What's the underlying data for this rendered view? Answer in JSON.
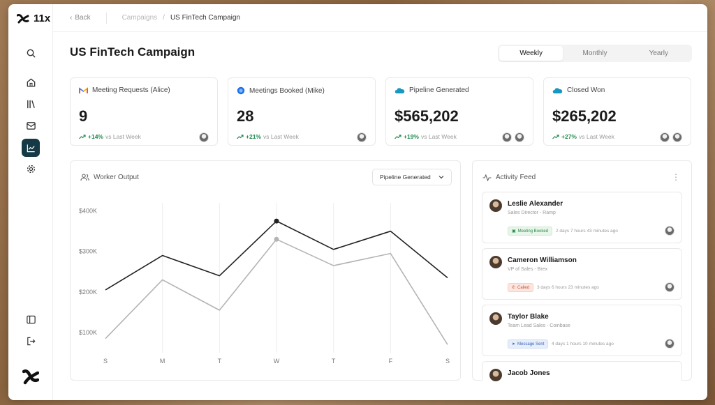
{
  "brand": {
    "name": "11x"
  },
  "topbar": {
    "back_label": "Back",
    "breadcrumb_parent": "Campaigns",
    "breadcrumb_sep": "/",
    "breadcrumb_current": "US FinTech Campaign"
  },
  "page": {
    "title": "US FinTech Campaign"
  },
  "period_toggle": {
    "options": [
      "Weekly",
      "Monthly",
      "Yearly"
    ],
    "selected": "Weekly"
  },
  "stats": [
    {
      "label": "Meeting Requests (Alice)",
      "icon": "gmail-icon",
      "value": "9",
      "trend": "+14%",
      "trend_suffix": "vs Last Week"
    },
    {
      "label": "Meetings Booked (Mike)",
      "icon": "calendar-dot-icon",
      "value": "28",
      "trend": "+21%",
      "trend_suffix": "vs Last Week"
    },
    {
      "label": "Pipeline Generated",
      "icon": "salesforce-icon",
      "value": "$565,202",
      "trend": "+19%",
      "trend_suffix": "vs Last Week"
    },
    {
      "label": "Closed Won",
      "icon": "salesforce-icon",
      "value": "$265,202",
      "trend": "+27%",
      "trend_suffix": "vs Last Week"
    }
  ],
  "worker_output": {
    "title": "Worker Output",
    "dropdown_value": "Pipeline Generated"
  },
  "chart_data": {
    "type": "line",
    "categories": [
      "S",
      "M",
      "T",
      "W",
      "T",
      "F",
      "S"
    ],
    "yticks": [
      "$100K",
      "$200K",
      "$300K",
      "$400K"
    ],
    "ylim": [
      50000,
      420000
    ],
    "series": [
      {
        "values": [
          205000,
          290000,
          240000,
          375000,
          305000,
          350000,
          235000
        ],
        "color": "#222222"
      },
      {
        "values": [
          85000,
          230000,
          155000,
          330000,
          265000,
          295000,
          70000
        ],
        "color": "#b4b4b4"
      }
    ],
    "grid": true
  },
  "activity_feed": {
    "title": "Activity Feed",
    "items": [
      {
        "name": "Leslie Alexander",
        "role": "Sales Director - Ramp",
        "tag": "Meeting Booked",
        "tag_color": "#e7f5ea",
        "tag_text_color": "#2a8a4a",
        "time": "2 days 7 hours 43 minutes ago"
      },
      {
        "name": "Cameron Williamson",
        "role": "VP of Sales - Brex",
        "tag": "Called",
        "tag_color": "#fde6df",
        "tag_text_color": "#c4532f",
        "time": "3 days 6 hours 23 minutes ago"
      },
      {
        "name": "Taylor Blake",
        "role": "Team Lead Sales - Coinbase",
        "tag": "Message Sent",
        "tag_color": "#e6eefb",
        "tag_text_color": "#3b63b3",
        "time": "4 days 1 hours 10 minutes ago"
      },
      {
        "name": "Jacob Jones",
        "role": "",
        "tag": "",
        "time": ""
      }
    ]
  }
}
